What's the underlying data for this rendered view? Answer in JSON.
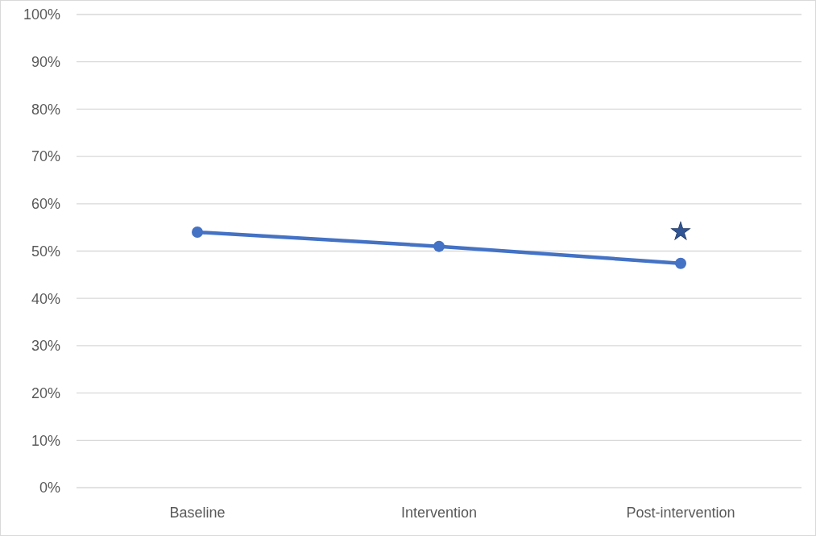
{
  "chart_data": {
    "type": "line",
    "categories": [
      "Baseline",
      "Intervention",
      "Post-intervention"
    ],
    "series": [
      {
        "color": "#4472c4",
        "values": [
          54,
          51,
          47.4
        ]
      }
    ],
    "ylim": [
      0,
      100
    ],
    "yticks": [
      {
        "value": 0,
        "label": "0%"
      },
      {
        "value": 10,
        "label": "10%"
      },
      {
        "value": 20,
        "label": "20%"
      },
      {
        "value": 30,
        "label": "30%"
      },
      {
        "value": 40,
        "label": "40%"
      },
      {
        "value": 50,
        "label": "50%"
      },
      {
        "value": 60,
        "label": "60%"
      },
      {
        "value": 70,
        "label": "70%"
      },
      {
        "value": 80,
        "label": "80%"
      },
      {
        "value": 90,
        "label": "90%"
      },
      {
        "value": 100,
        "label": "100%"
      }
    ],
    "grid": "y",
    "marker": "circle",
    "line_style": "solid",
    "annotations": [
      "★"
    ]
  }
}
